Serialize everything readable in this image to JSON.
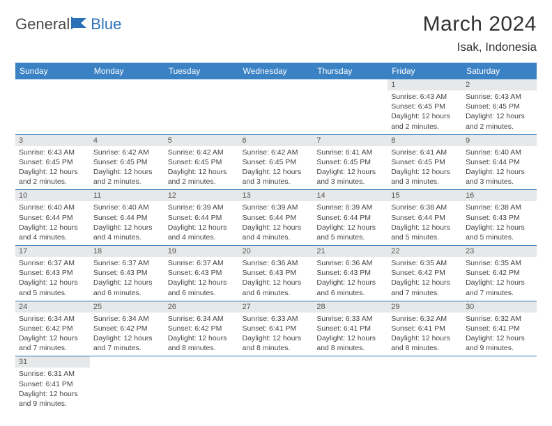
{
  "logo": {
    "text1": "General",
    "text2": "Blue"
  },
  "title": "March 2024",
  "location": "Isak, Indonesia",
  "colors": {
    "header_bg": "#3b82c4",
    "header_text": "#ffffff",
    "daynum_bg": "#e7e8e9",
    "border": "#2a71b8",
    "logo_gray": "#4a4a4a",
    "logo_blue": "#2a71b8"
  },
  "weekdays": [
    "Sunday",
    "Monday",
    "Tuesday",
    "Wednesday",
    "Thursday",
    "Friday",
    "Saturday"
  ],
  "weeks": [
    [
      null,
      null,
      null,
      null,
      null,
      {
        "n": "1",
        "sr": "6:43 AM",
        "ss": "6:45 PM",
        "dl": "12 hours and 2 minutes."
      },
      {
        "n": "2",
        "sr": "6:43 AM",
        "ss": "6:45 PM",
        "dl": "12 hours and 2 minutes."
      }
    ],
    [
      {
        "n": "3",
        "sr": "6:43 AM",
        "ss": "6:45 PM",
        "dl": "12 hours and 2 minutes."
      },
      {
        "n": "4",
        "sr": "6:42 AM",
        "ss": "6:45 PM",
        "dl": "12 hours and 2 minutes."
      },
      {
        "n": "5",
        "sr": "6:42 AM",
        "ss": "6:45 PM",
        "dl": "12 hours and 2 minutes."
      },
      {
        "n": "6",
        "sr": "6:42 AM",
        "ss": "6:45 PM",
        "dl": "12 hours and 3 minutes."
      },
      {
        "n": "7",
        "sr": "6:41 AM",
        "ss": "6:45 PM",
        "dl": "12 hours and 3 minutes."
      },
      {
        "n": "8",
        "sr": "6:41 AM",
        "ss": "6:45 PM",
        "dl": "12 hours and 3 minutes."
      },
      {
        "n": "9",
        "sr": "6:40 AM",
        "ss": "6:44 PM",
        "dl": "12 hours and 3 minutes."
      }
    ],
    [
      {
        "n": "10",
        "sr": "6:40 AM",
        "ss": "6:44 PM",
        "dl": "12 hours and 4 minutes."
      },
      {
        "n": "11",
        "sr": "6:40 AM",
        "ss": "6:44 PM",
        "dl": "12 hours and 4 minutes."
      },
      {
        "n": "12",
        "sr": "6:39 AM",
        "ss": "6:44 PM",
        "dl": "12 hours and 4 minutes."
      },
      {
        "n": "13",
        "sr": "6:39 AM",
        "ss": "6:44 PM",
        "dl": "12 hours and 4 minutes."
      },
      {
        "n": "14",
        "sr": "6:39 AM",
        "ss": "6:44 PM",
        "dl": "12 hours and 5 minutes."
      },
      {
        "n": "15",
        "sr": "6:38 AM",
        "ss": "6:44 PM",
        "dl": "12 hours and 5 minutes."
      },
      {
        "n": "16",
        "sr": "6:38 AM",
        "ss": "6:43 PM",
        "dl": "12 hours and 5 minutes."
      }
    ],
    [
      {
        "n": "17",
        "sr": "6:37 AM",
        "ss": "6:43 PM",
        "dl": "12 hours and 5 minutes."
      },
      {
        "n": "18",
        "sr": "6:37 AM",
        "ss": "6:43 PM",
        "dl": "12 hours and 6 minutes."
      },
      {
        "n": "19",
        "sr": "6:37 AM",
        "ss": "6:43 PM",
        "dl": "12 hours and 6 minutes."
      },
      {
        "n": "20",
        "sr": "6:36 AM",
        "ss": "6:43 PM",
        "dl": "12 hours and 6 minutes."
      },
      {
        "n": "21",
        "sr": "6:36 AM",
        "ss": "6:43 PM",
        "dl": "12 hours and 6 minutes."
      },
      {
        "n": "22",
        "sr": "6:35 AM",
        "ss": "6:42 PM",
        "dl": "12 hours and 7 minutes."
      },
      {
        "n": "23",
        "sr": "6:35 AM",
        "ss": "6:42 PM",
        "dl": "12 hours and 7 minutes."
      }
    ],
    [
      {
        "n": "24",
        "sr": "6:34 AM",
        "ss": "6:42 PM",
        "dl": "12 hours and 7 minutes."
      },
      {
        "n": "25",
        "sr": "6:34 AM",
        "ss": "6:42 PM",
        "dl": "12 hours and 7 minutes."
      },
      {
        "n": "26",
        "sr": "6:34 AM",
        "ss": "6:42 PM",
        "dl": "12 hours and 8 minutes."
      },
      {
        "n": "27",
        "sr": "6:33 AM",
        "ss": "6:41 PM",
        "dl": "12 hours and 8 minutes."
      },
      {
        "n": "28",
        "sr": "6:33 AM",
        "ss": "6:41 PM",
        "dl": "12 hours and 8 minutes."
      },
      {
        "n": "29",
        "sr": "6:32 AM",
        "ss": "6:41 PM",
        "dl": "12 hours and 8 minutes."
      },
      {
        "n": "30",
        "sr": "6:32 AM",
        "ss": "6:41 PM",
        "dl": "12 hours and 9 minutes."
      }
    ],
    [
      {
        "n": "31",
        "sr": "6:31 AM",
        "ss": "6:41 PM",
        "dl": "12 hours and 9 minutes."
      },
      null,
      null,
      null,
      null,
      null,
      null
    ]
  ],
  "labels": {
    "sunrise": "Sunrise: ",
    "sunset": "Sunset: ",
    "daylight": "Daylight: "
  }
}
